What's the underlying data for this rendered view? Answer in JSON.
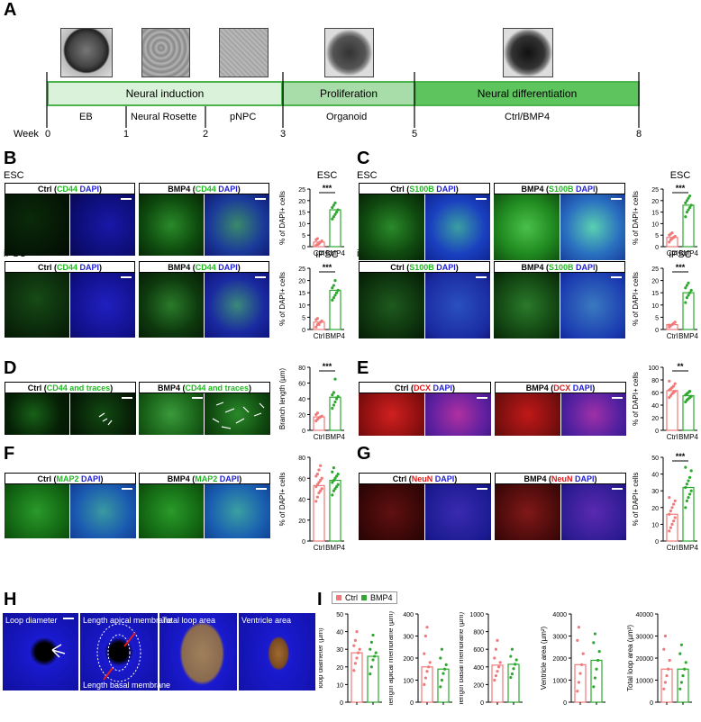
{
  "panel_letters": {
    "A": "A",
    "B": "B",
    "C": "C",
    "D": "D",
    "E": "E",
    "F": "F",
    "G": "G",
    "H": "H",
    "I": "I"
  },
  "timeline": {
    "week_label": "Week",
    "weeks": [
      "0",
      "1",
      "2",
      "3",
      "5",
      "8"
    ],
    "phases": [
      "Neural induction",
      "Proliferation",
      "Neural differentiation"
    ],
    "stages": [
      "EB",
      "Neural Rosette",
      "pNPC",
      "Organoid",
      "Ctrl/BMP4"
    ]
  },
  "row_labels": {
    "esc": "ESC",
    "ipsc": "iPSC"
  },
  "headers": {
    "ctrl": "Ctrl",
    "bmp4": "BMP4",
    "cd44": "CD44",
    "dapi": "DAPI",
    "s100b": "S100B",
    "dcx": "DCX",
    "map2": "MAP2",
    "neun": "NeuN",
    "cd44_traces": "CD44 and traces",
    "open": "(",
    "close": ")"
  },
  "h_labels": [
    "Loop diameter",
    "Length apical membrane",
    "Total loop area",
    "Ventricle area",
    "Length basal membrane"
  ],
  "colors": {
    "ctrl": "#f07a7a",
    "bmp4": "#2ea82e",
    "dapi": "#1414c8",
    "marker_green": "#22cc22",
    "marker_red": "#e02020"
  },
  "chart_data": [
    {
      "id": "B_esc",
      "type": "bar",
      "title": "ESC",
      "ylabel": "% of DAPI+ cells",
      "categories": [
        "Ctrl",
        "BMP4"
      ],
      "values": [
        2,
        16
      ],
      "ylim": [
        0,
        25
      ],
      "yticks": [
        0,
        5,
        10,
        15,
        20,
        25
      ],
      "significance": "***",
      "points": [
        [
          0.5,
          1,
          1.5,
          2,
          2.5,
          3,
          3.5,
          1.2
        ],
        [
          12,
          13,
          14,
          15,
          16,
          17,
          18,
          19
        ]
      ]
    },
    {
      "id": "B_ipsc",
      "type": "bar",
      "title": "iPSC",
      "ylabel": "% of DAPI+ cells",
      "categories": [
        "Ctrl",
        "BMP4"
      ],
      "values": [
        3,
        16
      ],
      "ylim": [
        0,
        25
      ],
      "yticks": [
        0,
        5,
        10,
        15,
        20,
        25
      ],
      "significance": "***",
      "points": [
        [
          1,
          2,
          2.5,
          3,
          3.5,
          4,
          4.5,
          2
        ],
        [
          12,
          13,
          14,
          15,
          16,
          17,
          18,
          20
        ]
      ]
    },
    {
      "id": "C_esc",
      "type": "bar",
      "title": "ESC",
      "ylabel": "% of DAPI+ cells",
      "categories": [
        "Ctrl",
        "BMP4"
      ],
      "values": [
        4,
        18
      ],
      "ylim": [
        0,
        25
      ],
      "yticks": [
        0,
        5,
        10,
        15,
        20,
        25
      ],
      "significance": "***",
      "points": [
        [
          2,
          3,
          3.5,
          4,
          4.5,
          5,
          5.5,
          6
        ],
        [
          13,
          15,
          16,
          17,
          18,
          19,
          20,
          21,
          22
        ]
      ]
    },
    {
      "id": "C_ipsc",
      "type": "bar",
      "title": "iPSC",
      "ylabel": "% of DAPI+ cells",
      "categories": [
        "Ctrl",
        "BMP4"
      ],
      "values": [
        2,
        15
      ],
      "ylim": [
        0,
        25
      ],
      "yticks": [
        0,
        5,
        10,
        15,
        20,
        25
      ],
      "significance": "***",
      "points": [
        [
          1,
          1.5,
          2,
          2.5,
          3,
          1.8
        ],
        [
          11,
          13,
          14,
          15,
          16,
          17,
          18,
          19
        ]
      ]
    },
    {
      "id": "D",
      "type": "bar",
      "ylabel": "Branch length (µm)",
      "categories": [
        "Ctrl",
        "BMP4"
      ],
      "values": [
        17,
        42
      ],
      "ylim": [
        0,
        80
      ],
      "yticks": [
        0,
        20,
        40,
        60,
        80
      ],
      "significance": "***",
      "points": [
        [
          12,
          14,
          16,
          17,
          18,
          20,
          22
        ],
        [
          28,
          32,
          36,
          40,
          43,
          45,
          48,
          65
        ]
      ]
    },
    {
      "id": "E",
      "type": "bar",
      "ylabel": "% of DAPI+ cells",
      "categories": [
        "Ctrl",
        "BMP4"
      ],
      "values": [
        63,
        55
      ],
      "ylim": [
        0,
        100
      ],
      "yticks": [
        0,
        20,
        40,
        60,
        80,
        100
      ],
      "significance": "**",
      "points": [
        [
          52,
          55,
          58,
          60,
          62,
          64,
          66,
          68,
          70,
          74,
          78
        ],
        [
          45,
          48,
          50,
          52,
          54,
          56,
          58,
          60,
          62
        ]
      ]
    },
    {
      "id": "F",
      "type": "bar",
      "ylabel": "% of DAPI+ cells",
      "categories": [
        "Ctrl",
        "BMP4"
      ],
      "values": [
        53,
        58
      ],
      "ylim": [
        0,
        80
      ],
      "yticks": [
        0,
        20,
        40,
        60,
        80
      ],
      "significance": "",
      "points": [
        [
          38,
          42,
          46,
          48,
          50,
          52,
          54,
          56,
          58,
          60,
          62,
          64,
          68,
          72
        ],
        [
          44,
          48,
          50,
          52,
          54,
          56,
          58,
          60,
          62,
          64,
          66,
          70
        ]
      ]
    },
    {
      "id": "G",
      "type": "bar",
      "ylabel": "% of DAPI+ cells",
      "categories": [
        "Ctrl",
        "BMP4"
      ],
      "values": [
        16,
        32
      ],
      "ylim": [
        0,
        50
      ],
      "yticks": [
        0,
        10,
        20,
        30,
        40,
        50
      ],
      "significance": "***",
      "points": [
        [
          6,
          8,
          10,
          12,
          14,
          16,
          18,
          20,
          22,
          24,
          26
        ],
        [
          20,
          24,
          26,
          28,
          30,
          32,
          34,
          36,
          38,
          42,
          44
        ]
      ]
    },
    {
      "id": "I1",
      "type": "bar",
      "ylabel": "loop diameter (µm)",
      "categories": [
        "Ctrl",
        "BMP4"
      ],
      "values": [
        28,
        26
      ],
      "ylim": [
        0,
        50
      ],
      "yticks": [
        0,
        10,
        20,
        30,
        40,
        50
      ],
      "significance": "",
      "points": [
        [
          18,
          22,
          25,
          28,
          30,
          32,
          35,
          40
        ],
        [
          16,
          20,
          24,
          26,
          28,
          30,
          34,
          38
        ]
      ]
    },
    {
      "id": "I2",
      "type": "bar",
      "ylabel": "length apical membrane (µm)",
      "categories": [
        "Ctrl",
        "BMP4"
      ],
      "values": [
        160,
        150
      ],
      "ylim": [
        0,
        400
      ],
      "yticks": [
        0,
        100,
        200,
        300,
        400
      ],
      "significance": "",
      "points": [
        [
          80,
          110,
          140,
          160,
          180,
          220,
          300,
          340
        ],
        [
          70,
          100,
          130,
          150,
          170,
          200,
          240
        ]
      ]
    },
    {
      "id": "I3",
      "type": "bar",
      "ylabel": "length basal membrane (µm)",
      "categories": [
        "Ctrl",
        "BMP4"
      ],
      "values": [
        420,
        430
      ],
      "ylim": [
        0,
        1000
      ],
      "yticks": [
        0,
        200,
        400,
        600,
        800,
        1000
      ],
      "significance": "",
      "points": [
        [
          250,
          300,
          350,
          400,
          450,
          500,
          600,
          700
        ],
        [
          280,
          320,
          380,
          430,
          480,
          520,
          600
        ]
      ]
    },
    {
      "id": "I4",
      "type": "bar",
      "ylabel": "Ventricle area (µm²)",
      "categories": [
        "Ctrl",
        "BMP4"
      ],
      "values": [
        1700,
        1900
      ],
      "ylim": [
        0,
        4000
      ],
      "yticks": [
        0,
        1000,
        2000,
        3000,
        4000
      ],
      "significance": "",
      "points": [
        [
          500,
          900,
          1300,
          1700,
          2200,
          2800,
          3400
        ],
        [
          700,
          1100,
          1500,
          1900,
          2300,
          2700,
          3100
        ]
      ]
    },
    {
      "id": "I5",
      "type": "bar",
      "ylabel": "Total loop area (µm²)",
      "categories": [
        "Ctrl",
        "BMP4"
      ],
      "values": [
        15000,
        15000
      ],
      "ylim": [
        0,
        40000
      ],
      "yticks": [
        0,
        10000,
        20000,
        30000,
        40000
      ],
      "significance": "",
      "points": [
        [
          6000,
          9000,
          12000,
          15000,
          19000,
          24000,
          30000
        ],
        [
          6000,
          9000,
          12000,
          15000,
          18000,
          22000,
          26000
        ]
      ]
    }
  ],
  "legend_I": {
    "ctrl": "Ctrl",
    "bmp4": "BMP4"
  }
}
